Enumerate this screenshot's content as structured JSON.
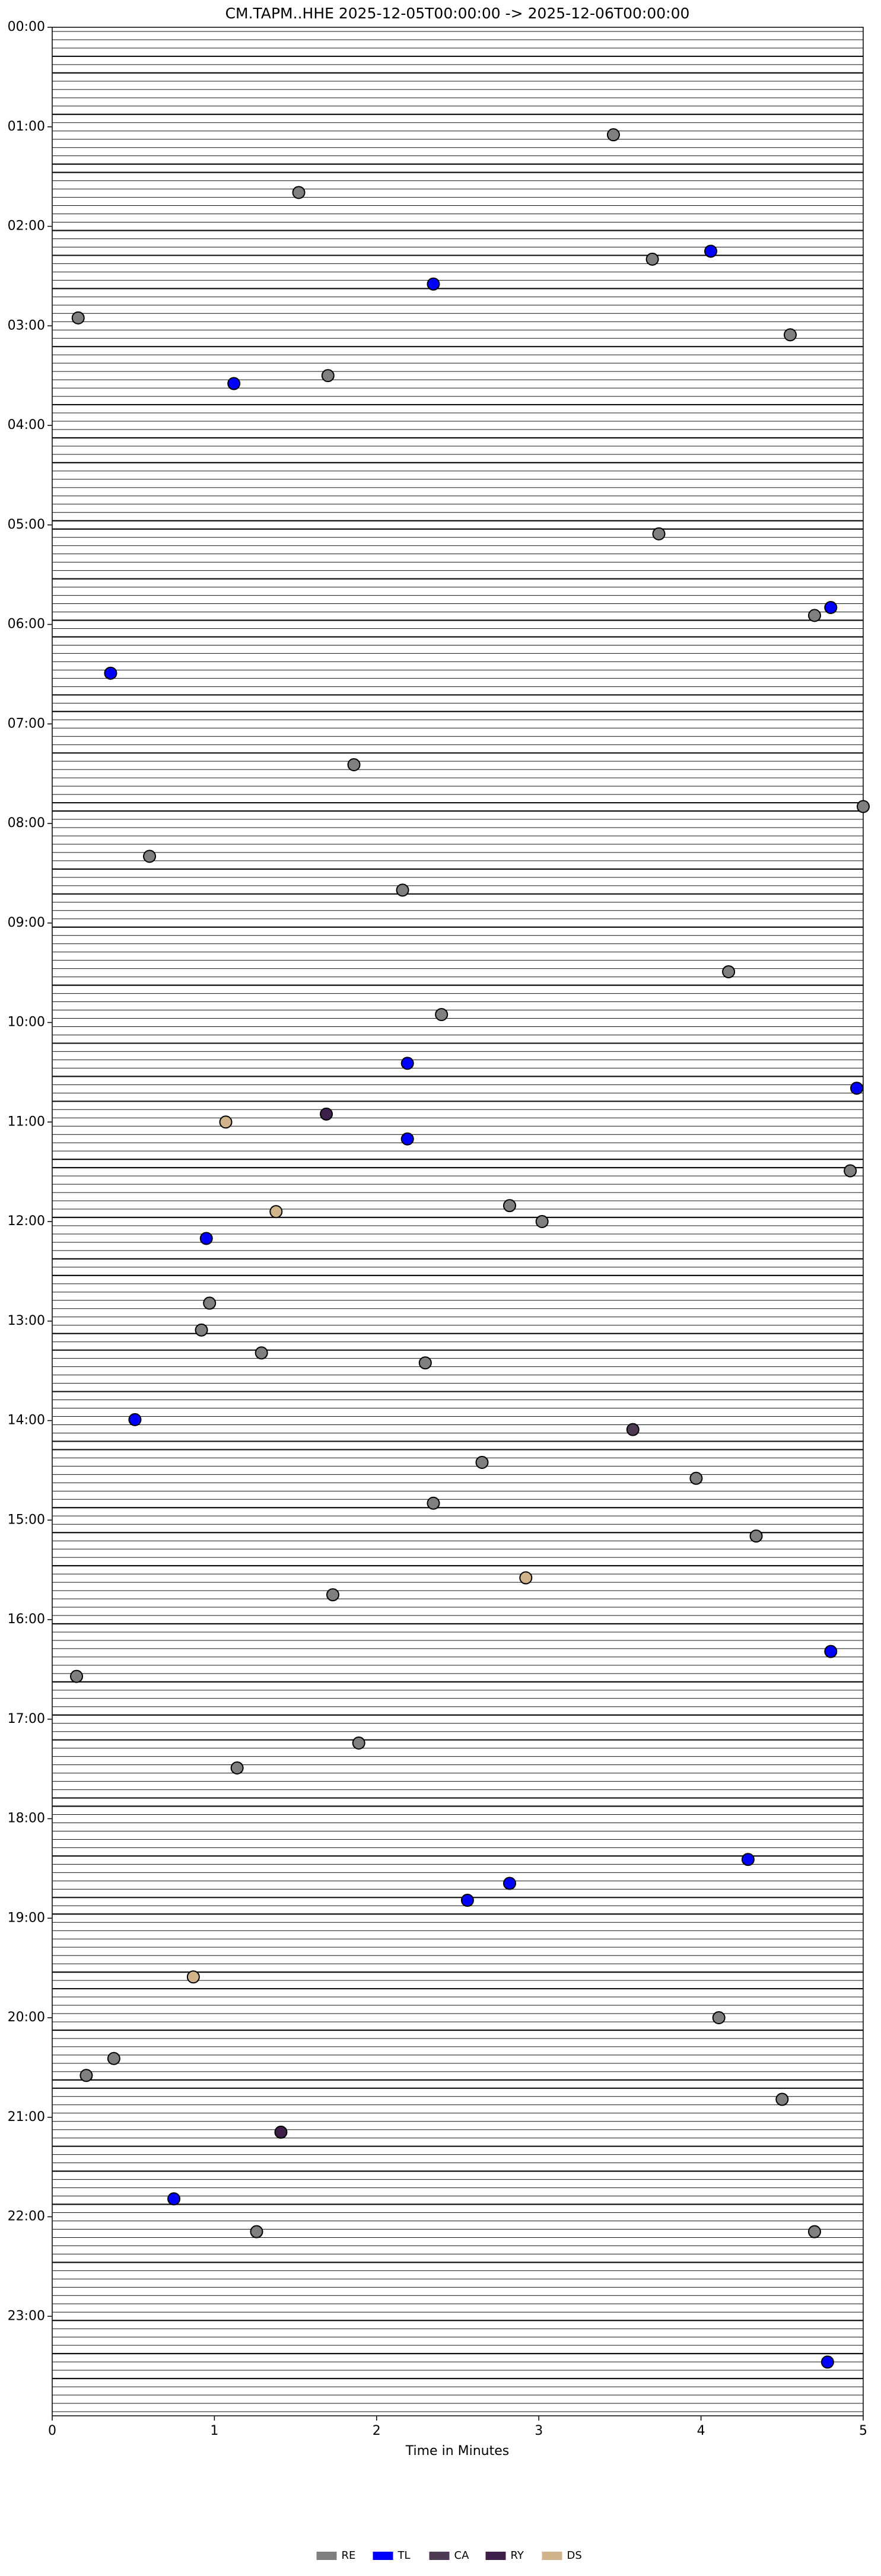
{
  "chart_data": {
    "type": "scatter",
    "title": "CM.TAPM..HHE  2025-12-05T00:00:00 -> 2025-12-06T00:00:00",
    "xlabel": "Time in Minutes",
    "xlim": [
      0,
      5
    ],
    "xticks": [
      0,
      1,
      2,
      3,
      4,
      5
    ],
    "ylim": [
      0,
      24
    ],
    "y_inverted": true,
    "yticks": [
      {
        "value": 0,
        "label": "00:00"
      },
      {
        "value": 1,
        "label": "01:00"
      },
      {
        "value": 2,
        "label": "02:00"
      },
      {
        "value": 3,
        "label": "03:00"
      },
      {
        "value": 4,
        "label": "04:00"
      },
      {
        "value": 5,
        "label": "05:00"
      },
      {
        "value": 6,
        "label": "06:00"
      },
      {
        "value": 7,
        "label": "07:00"
      },
      {
        "value": 8,
        "label": "08:00"
      },
      {
        "value": 9,
        "label": "09:00"
      },
      {
        "value": 10,
        "label": "10:00"
      },
      {
        "value": 11,
        "label": "11:00"
      },
      {
        "value": 12,
        "label": "12:00"
      },
      {
        "value": 13,
        "label": "13:00"
      },
      {
        "value": 14,
        "label": "14:00"
      },
      {
        "value": 15,
        "label": "15:00"
      },
      {
        "value": 16,
        "label": "16:00"
      },
      {
        "value": 17,
        "label": "17:00"
      },
      {
        "value": 18,
        "label": "18:00"
      },
      {
        "value": 19,
        "label": "19:00"
      },
      {
        "value": 20,
        "label": "20:00"
      },
      {
        "value": 21,
        "label": "21:00"
      },
      {
        "value": 22,
        "label": "22:00"
      },
      {
        "value": 23,
        "label": "23:00"
      }
    ],
    "legend": "lower center",
    "series": [
      {
        "name": "RE",
        "color": "#7f7f7f",
        "x": [
          3.46,
          1.52,
          3.7,
          0.16,
          4.55,
          1.7,
          3.74,
          4.7,
          1.86,
          5.0,
          0.6,
          2.16,
          4.17,
          2.4,
          4.92,
          2.82,
          3.02,
          0.97,
          0.92,
          1.29,
          2.3,
          2.65,
          3.97,
          2.35,
          4.34,
          1.73,
          0.15,
          1.89,
          1.14,
          4.11,
          0.38,
          0.21,
          4.5,
          1.26,
          4.7
        ],
        "y": [
          1.08,
          1.66,
          2.33,
          2.92,
          3.09,
          3.5,
          5.09,
          5.91,
          7.41,
          7.83,
          8.33,
          8.67,
          9.49,
          9.92,
          11.49,
          11.84,
          12.0,
          12.82,
          13.09,
          13.32,
          13.42,
          14.42,
          14.58,
          14.83,
          15.16,
          15.75,
          16.57,
          17.24,
          17.49,
          20.0,
          20.41,
          20.58,
          20.82,
          22.15,
          22.15
        ]
      },
      {
        "name": "TL",
        "color": "#0000ff",
        "x": [
          4.06,
          2.35,
          1.12,
          4.8,
          0.36,
          2.19,
          4.96,
          2.19,
          0.95,
          0.51,
          4.8,
          4.29,
          2.82,
          2.56,
          0.75,
          4.78
        ],
        "y": [
          2.25,
          2.58,
          3.58,
          5.83,
          6.49,
          10.41,
          10.66,
          11.17,
          12.17,
          13.99,
          16.32,
          18.41,
          18.65,
          18.82,
          21.82,
          23.46
        ]
      },
      {
        "name": "CA",
        "color": "#4e3a52",
        "x": [
          3.58
        ],
        "y": [
          14.09
        ]
      },
      {
        "name": "RY",
        "color": "#3d1f4a",
        "x": [
          1.69,
          1.41
        ],
        "y": [
          10.92,
          21.15
        ]
      },
      {
        "name": "DS",
        "color": "#d2b48c",
        "x": [
          1.07,
          1.38,
          2.92,
          0.87
        ],
        "y": [
          11.0,
          11.9,
          15.58,
          19.59
        ]
      }
    ]
  }
}
